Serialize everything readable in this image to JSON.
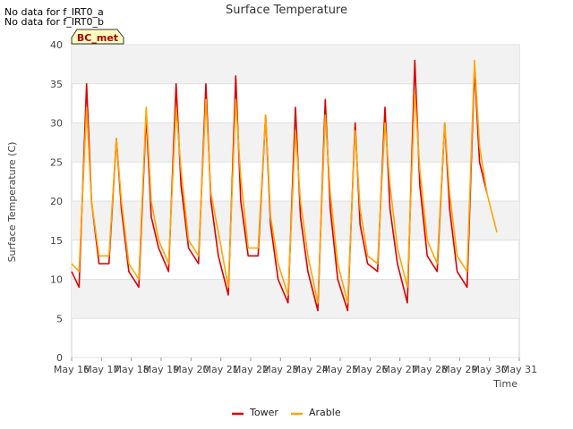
{
  "chart_data": {
    "type": "line",
    "title": "Surface Temperature",
    "xlabel": "Time",
    "ylabel": "Surface Temperature (C)",
    "ylim": [
      0,
      40
    ],
    "yticks": [
      0,
      5,
      10,
      15,
      20,
      25,
      30,
      35,
      40
    ],
    "xlim": [
      "May 16",
      "May 31"
    ],
    "xticks": [
      "May 16",
      "May 17",
      "May 18",
      "May 19",
      "May 20",
      "May 21",
      "May 22",
      "May 23",
      "May 24",
      "May 25",
      "May 26",
      "May 27",
      "May 28",
      "May 29",
      "May 30",
      "May 31"
    ],
    "grid": "horizontal bands",
    "legend_position": "bottom",
    "notes": [
      "No data for f_IRT0_a",
      "No data for f_IRT0_b"
    ],
    "badge": "BC_met",
    "series": [
      {
        "name": "Tower",
        "color": "#dd0000",
        "x": [
          "May 16 00:00",
          "May 16 06:00",
          "May 16 12:00",
          "May 16 16:00",
          "May 16 22:00",
          "May 17 06:00",
          "May 17 12:00",
          "May 17 16:00",
          "May 17 22:00",
          "May 18 06:00",
          "May 18 12:00",
          "May 18 16:00",
          "May 18 22:00",
          "May 19 06:00",
          "May 19 12:00",
          "May 19 16:00",
          "May 19 22:00",
          "May 20 06:00",
          "May 20 12:00",
          "May 20 16:00",
          "May 20 22:00",
          "May 21 06:00",
          "May 21 12:00",
          "May 21 16:00",
          "May 21 22:00",
          "May 22 06:00",
          "May 22 12:00",
          "May 22 16:00",
          "May 22 22:00",
          "May 23 06:00",
          "May 23 12:00",
          "May 23 16:00",
          "May 23 22:00",
          "May 24 06:00",
          "May 24 12:00",
          "May 24 16:00",
          "May 24 22:00",
          "May 25 06:00",
          "May 25 12:00",
          "May 25 16:00",
          "May 25 22:00",
          "May 26 06:00",
          "May 26 12:00",
          "May 26 16:00",
          "May 26 22:00",
          "May 27 06:00",
          "May 27 12:00",
          "May 27 16:00",
          "May 27 22:00",
          "May 28 06:00",
          "May 28 12:00",
          "May 28 16:00",
          "May 28 22:00",
          "May 29 06:00",
          "May 29 12:00",
          "May 29 16:00",
          "May 29 22:00",
          "May 30 06:00",
          "May 30 12:00"
        ],
        "y": [
          11,
          9,
          35,
          20,
          12,
          12,
          28,
          19,
          11,
          9,
          31,
          18,
          14,
          11,
          35,
          22,
          14,
          12,
          35,
          20,
          13,
          8,
          36,
          20,
          13,
          13,
          31,
          17,
          10,
          7,
          32,
          18,
          11,
          6,
          33,
          19,
          10,
          6,
          30,
          17,
          12,
          11,
          32,
          19,
          12,
          7,
          38,
          22,
          13,
          11,
          30,
          19,
          11,
          9,
          37,
          25,
          21,
          null,
          null
        ]
      },
      {
        "name": "Arable",
        "color": "#ffa500",
        "x": [
          "May 16 00:00",
          "May 16 06:00",
          "May 16 12:00",
          "May 16 16:00",
          "May 16 22:00",
          "May 17 06:00",
          "May 17 12:00",
          "May 17 16:00",
          "May 17 22:00",
          "May 18 06:00",
          "May 18 12:00",
          "May 18 16:00",
          "May 18 22:00",
          "May 19 06:00",
          "May 19 12:00",
          "May 19 16:00",
          "May 19 22:00",
          "May 20 06:00",
          "May 20 12:00",
          "May 20 16:00",
          "May 20 22:00",
          "May 21 06:00",
          "May 21 12:00",
          "May 21 16:00",
          "May 21 22:00",
          "May 22 06:00",
          "May 22 12:00",
          "May 22 16:00",
          "May 22 22:00",
          "May 23 06:00",
          "May 23 12:00",
          "May 23 16:00",
          "May 23 22:00",
          "May 24 06:00",
          "May 24 12:00",
          "May 24 16:00",
          "May 24 22:00",
          "May 25 06:00",
          "May 25 12:00",
          "May 25 16:00",
          "May 25 22:00",
          "May 26 06:00",
          "May 26 12:00",
          "May 26 16:00",
          "May 26 22:00",
          "May 27 06:00",
          "May 27 12:00",
          "May 27 16:00",
          "May 27 22:00",
          "May 28 06:00",
          "May 28 12:00",
          "May 28 16:00",
          "May 28 22:00",
          "May 29 06:00",
          "May 29 12:00",
          "May 29 16:00",
          "May 29 22:00",
          "May 30 06:00",
          "May 30 12:00"
        ],
        "y": [
          12,
          11,
          32,
          20,
          13,
          13,
          28,
          20,
          12,
          10,
          32,
          20,
          15,
          12,
          32,
          24,
          15,
          13,
          33,
          21,
          16,
          9,
          33,
          23,
          14,
          14,
          31,
          18,
          12,
          8,
          29,
          20,
          13,
          7,
          31,
          21,
          12,
          7,
          29,
          19,
          13,
          12,
          30,
          22,
          14,
          9,
          34,
          24,
          15,
          12,
          30,
          21,
          13,
          11,
          38,
          27,
          21,
          16,
          null
        ]
      }
    ]
  }
}
